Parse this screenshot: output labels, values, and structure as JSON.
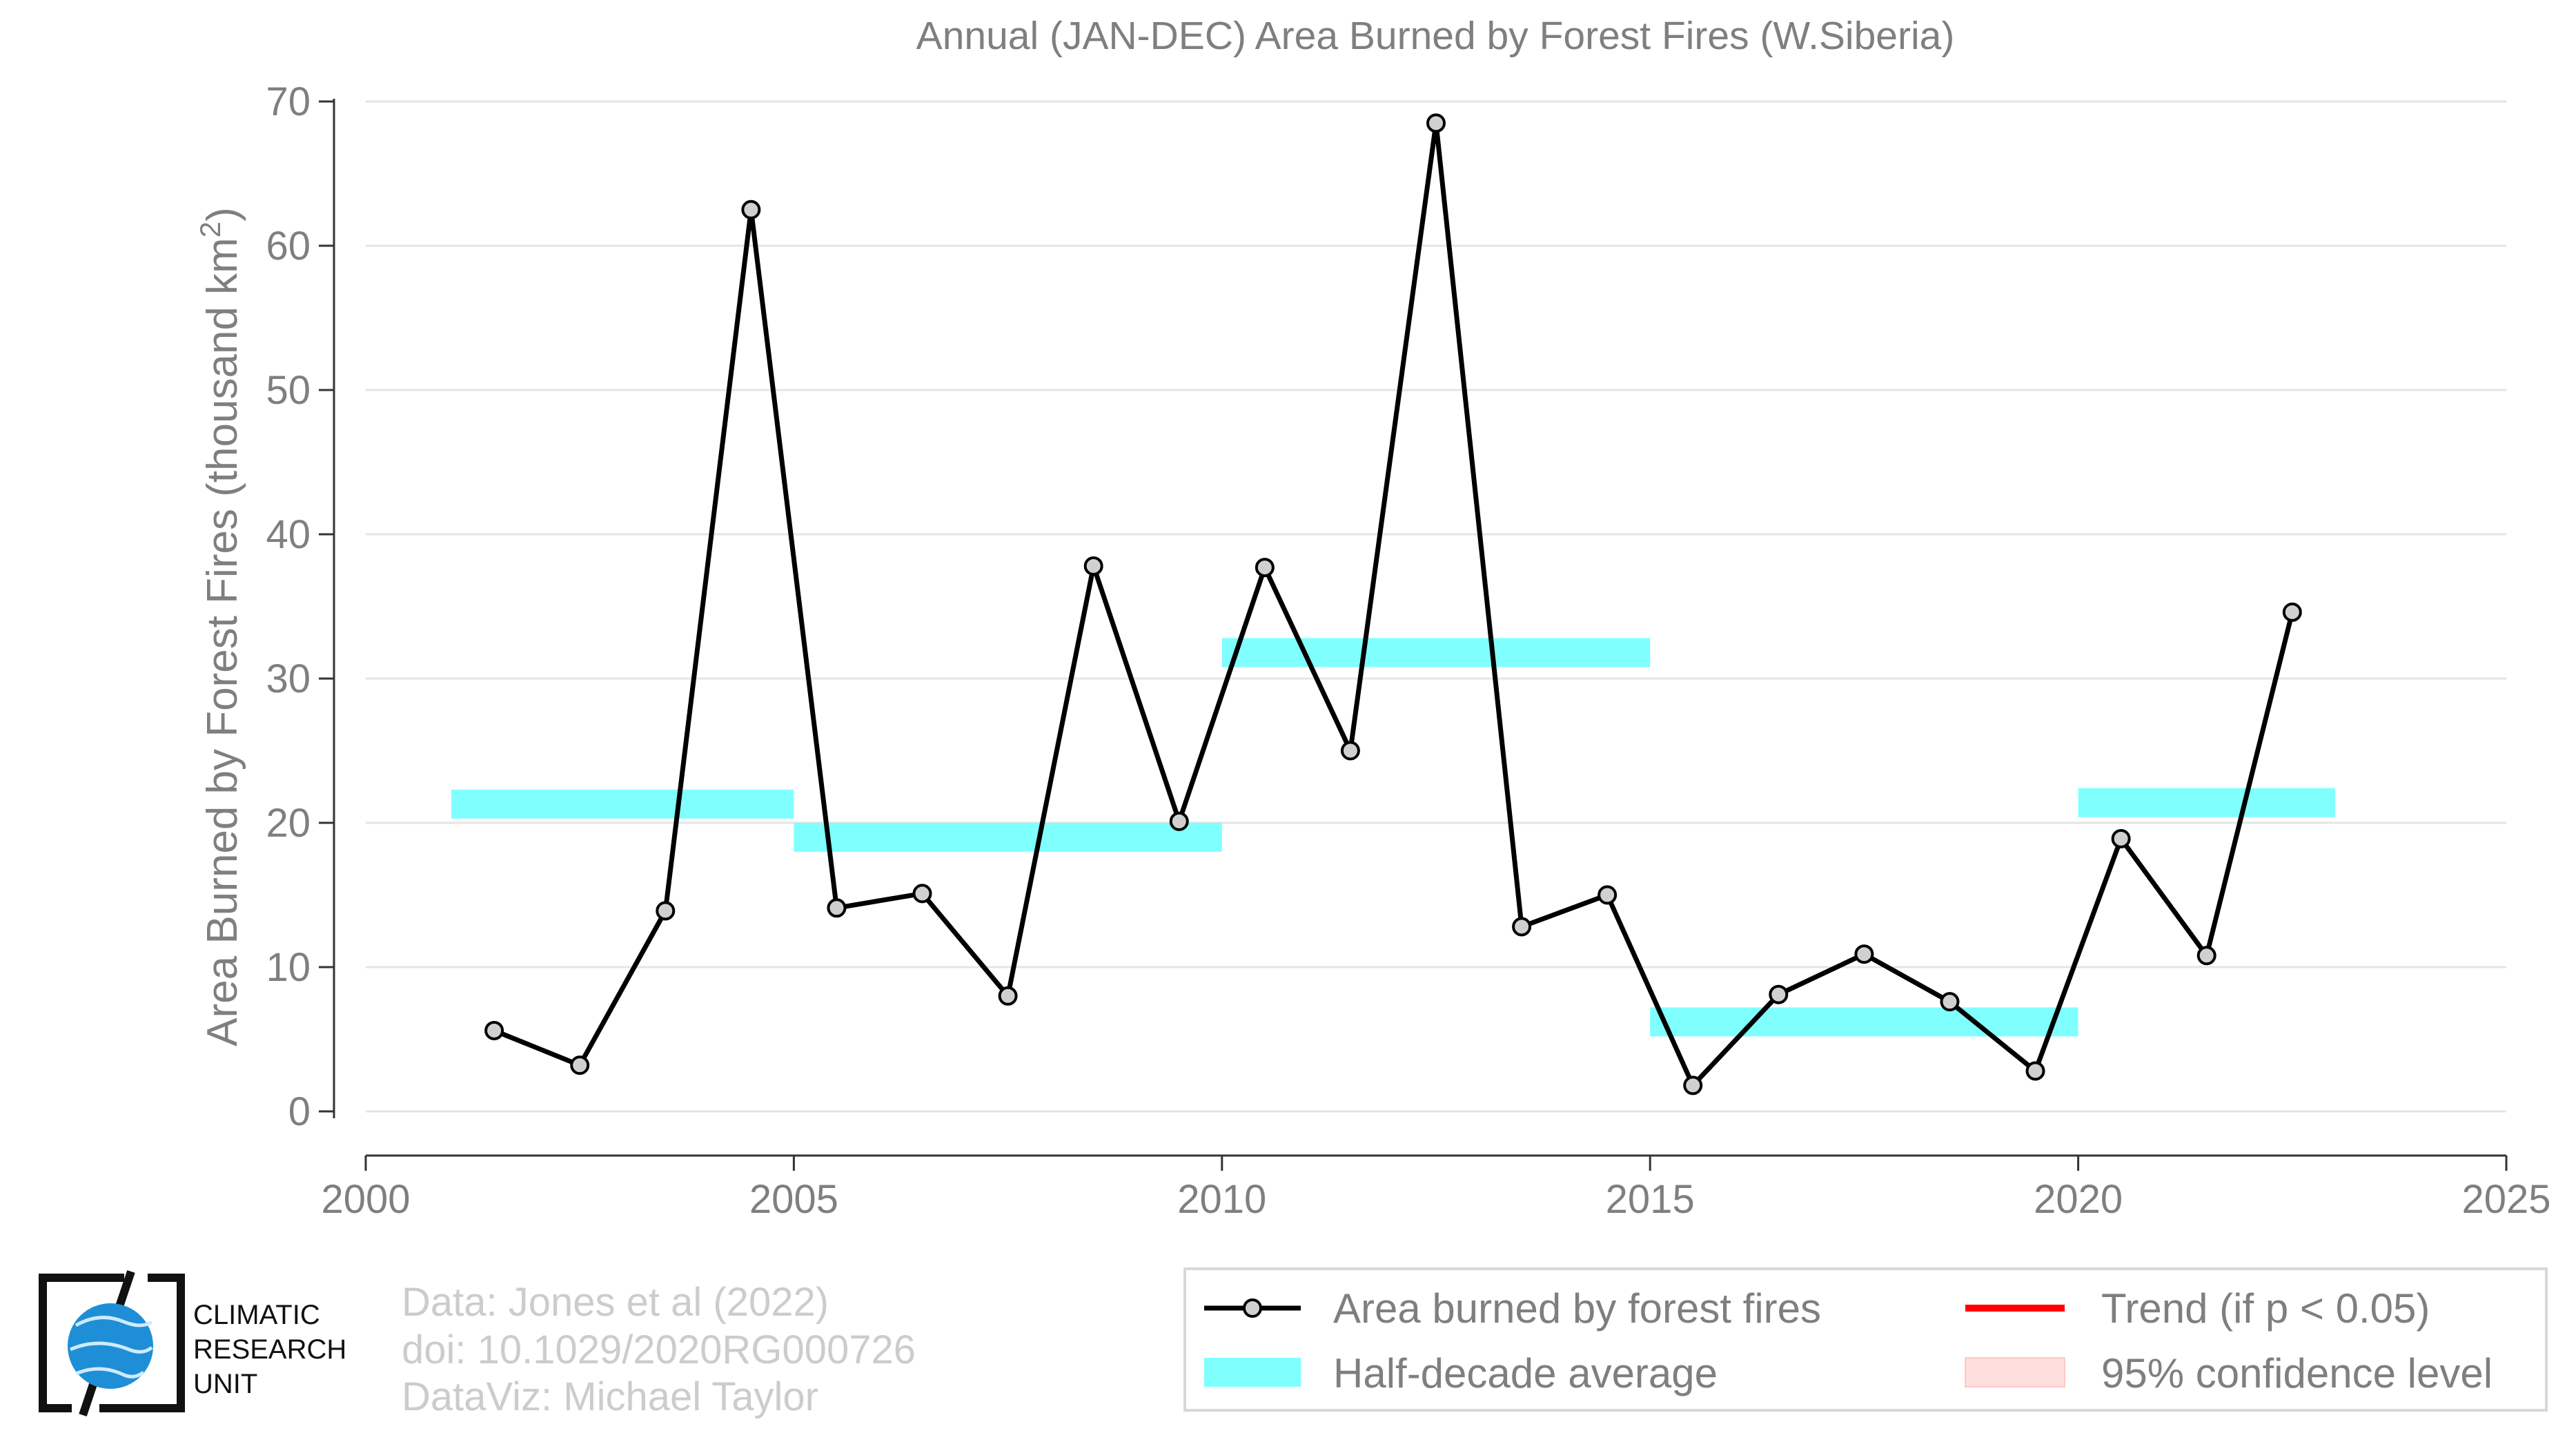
{
  "chart_data": {
    "type": "line",
    "title": "Annual (JAN-DEC) Area Burned by Forest Fires (W.Siberia)",
    "ylabel_main": "Area Burned by Forest Fires (thousand km",
    "ylabel_sup": "2",
    "ylabel_end": ")",
    "xlabel": "",
    "xlim": [
      2000,
      2025
    ],
    "ylim": [
      -3.5,
      70
    ],
    "xticks": [
      2000,
      2005,
      2010,
      2015,
      2020,
      2025
    ],
    "yticks": [
      0,
      10,
      20,
      30,
      40,
      50,
      60,
      70
    ],
    "grid": "horizontal",
    "series": [
      {
        "name": "Area burned by forest fires",
        "type": "line-marker",
        "color": "#000000",
        "marker_fill": "#d0d0d0",
        "x": [
          2001.5,
          2002.5,
          2003.5,
          2004.5,
          2005.5,
          2006.5,
          2007.5,
          2008.5,
          2009.5,
          2010.5,
          2011.5,
          2012.5,
          2013.5,
          2014.5,
          2015.5,
          2016.5,
          2017.5,
          2018.5,
          2019.5,
          2020.5,
          2021.5,
          2022.5
        ],
        "y": [
          5.6,
          3.2,
          13.9,
          62.5,
          14.1,
          15.1,
          8.0,
          37.8,
          20.1,
          37.7,
          25.0,
          68.5,
          12.8,
          15.0,
          1.8,
          8.1,
          10.9,
          7.6,
          2.8,
          18.9,
          10.8,
          34.6
        ]
      },
      {
        "name": "Half-decade average",
        "type": "band",
        "color": "#80ffff",
        "segments": [
          {
            "x0": 2001,
            "x1": 2005,
            "y": 21.3
          },
          {
            "x0": 2005,
            "x1": 2010,
            "y": 19.0
          },
          {
            "x0": 2010,
            "x1": 2015,
            "y": 31.8
          },
          {
            "x0": 2015,
            "x1": 2020,
            "y": 6.2
          },
          {
            "x0": 2020,
            "x1": 2023,
            "y": 21.4
          }
        ]
      }
    ],
    "legend": {
      "position": "bottom-right",
      "items": [
        {
          "label": "Area burned by forest fires",
          "kind": "line-marker",
          "color": "#000000"
        },
        {
          "label": "Trend (if p < 0.05)",
          "kind": "line",
          "color": "#ff0000"
        },
        {
          "label": "Half-decade average",
          "kind": "band",
          "color": "#80ffff"
        },
        {
          "label": "95% confidence level",
          "kind": "band",
          "color": "#ffdede"
        }
      ]
    }
  },
  "logo": {
    "line1": "CLIMATIC",
    "line2": "RESEARCH",
    "line3": "UNIT"
  },
  "credits": {
    "line1": "Data: Jones et al (2022)",
    "line2": "doi: 10.1029/2020RG000726",
    "line3": "DataViz: Michael Taylor"
  }
}
